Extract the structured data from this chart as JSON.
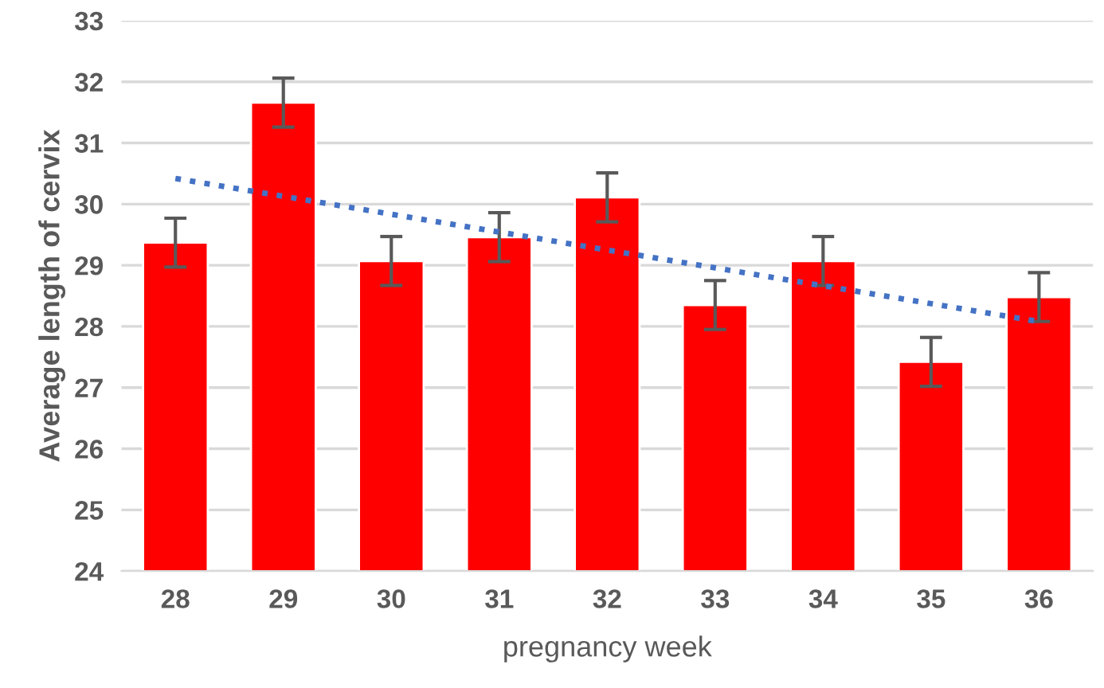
{
  "chart_data": {
    "type": "bar",
    "xlabel": "pregnancy week",
    "ylabel": "Average length of cervix",
    "categories": [
      "28",
      "29",
      "30",
      "31",
      "32",
      "33",
      "34",
      "35",
      "36"
    ],
    "series": [
      {
        "color": "#ff0000",
        "values": [
          29.37,
          31.66,
          29.07,
          29.46,
          30.11,
          28.35,
          29.07,
          27.42,
          28.48
        ],
        "errors": [
          0.4,
          0.4,
          0.4,
          0.4,
          0.4,
          0.4,
          0.4,
          0.4,
          0.4
        ]
      },
      {
        "type": "line",
        "color": "#4472c4",
        "line_style": "dotted",
        "x": [
          "28",
          "36"
        ],
        "values": [
          30.42,
          28.08
        ]
      }
    ],
    "ylim": [
      24,
      33
    ],
    "yticks": [
      24,
      25,
      26,
      27,
      28,
      29,
      30,
      31,
      32,
      33
    ],
    "grid": "y",
    "legend": false
  }
}
